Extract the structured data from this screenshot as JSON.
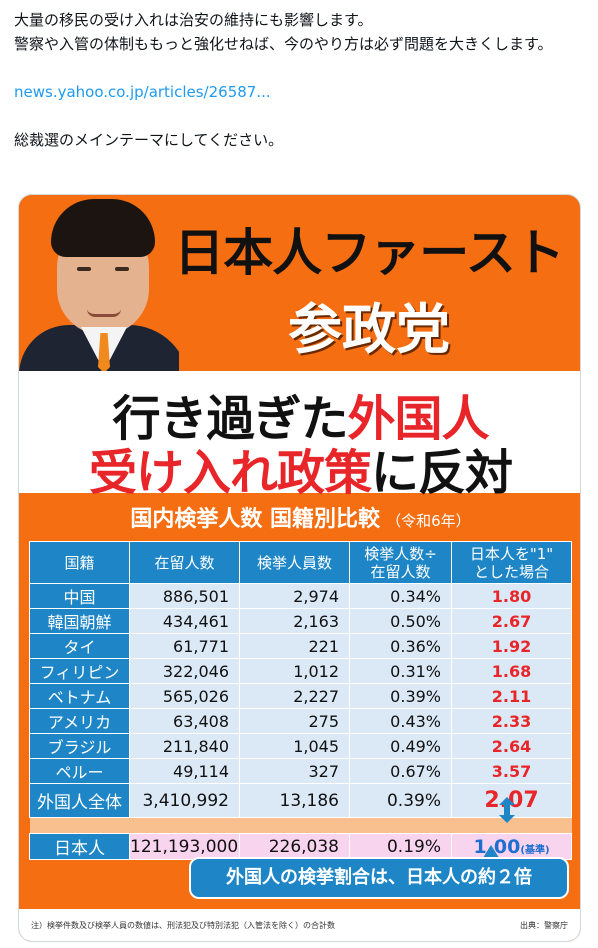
{
  "post": {
    "line1": "大量の移民の受け入れは治安の維持にも影響します。",
    "line2": "警察や入管の体制ももっと強化せねば、今のやり方は必ず問題を大きくします。",
    "link": "news.yahoo.co.jp/articles/26587...",
    "line3": "総裁選のメインテーマにしてください。"
  },
  "image": {
    "headline1": "日本人ファースト",
    "headline2": "参政党",
    "slogan": {
      "l1_black": "行き過ぎた",
      "l1_red": "外国人",
      "l2_red": "受け入れ政策",
      "l2_black": "に反対"
    },
    "subtitle": "国内検挙人数 国籍別比較",
    "subtitle_year": "（令和6年）",
    "headers": [
      "国籍",
      "在留人数",
      "検挙人員数",
      "検挙人数÷在留人数",
      "日本人を\"1\"とした場合"
    ],
    "header_split": {
      "h3a": "検挙人数÷",
      "h3b": "在留人数",
      "h4a": "日本人を\"1\"",
      "h4b": "とした場合"
    },
    "rows": [
      {
        "country": "中国",
        "residents": "886,501",
        "arrests": "2,974",
        "rate": "0.34%",
        "ratio": "1.80"
      },
      {
        "country": "韓国朝鮮",
        "residents": "434,461",
        "arrests": "2,163",
        "rate": "0.50%",
        "ratio": "2.67"
      },
      {
        "country": "タイ",
        "residents": "61,771",
        "arrests": "221",
        "rate": "0.36%",
        "ratio": "1.92"
      },
      {
        "country": "フィリピン",
        "residents": "322,046",
        "arrests": "1,012",
        "rate": "0.31%",
        "ratio": "1.68"
      },
      {
        "country": "ベトナム",
        "residents": "565,026",
        "arrests": "2,227",
        "rate": "0.39%",
        "ratio": "2.11"
      },
      {
        "country": "アメリカ",
        "residents": "63,408",
        "arrests": "275",
        "rate": "0.43%",
        "ratio": "2.33"
      },
      {
        "country": "ブラジル",
        "residents": "211,840",
        "arrests": "1,045",
        "rate": "0.49%",
        "ratio": "2.64"
      },
      {
        "country": "ペルー",
        "residents": "49,114",
        "arrests": "327",
        "rate": "0.67%",
        "ratio": "3.57"
      }
    ],
    "total": {
      "country": "外国人全体",
      "residents": "3,410,992",
      "arrests": "13,186",
      "rate": "0.39%",
      "ratio": "2.07"
    },
    "japanese": {
      "country": "日本人",
      "residents": "121,193,000",
      "arrests": "226,038",
      "rate": "0.19%",
      "ratio": "1.00",
      "base": "(基準)"
    },
    "conclusion": "外国人の検挙割合は、日本人の約２倍",
    "footnote": "注）検挙件数及び検挙人員の数値は、刑法犯及び特別法犯（入管法を除く）の合計数",
    "source": "出典：警察庁"
  },
  "colors": {
    "orange": "#f56e12",
    "blue": "#1e86c7",
    "red": "#e8262a",
    "link": "#1d9bf0"
  }
}
